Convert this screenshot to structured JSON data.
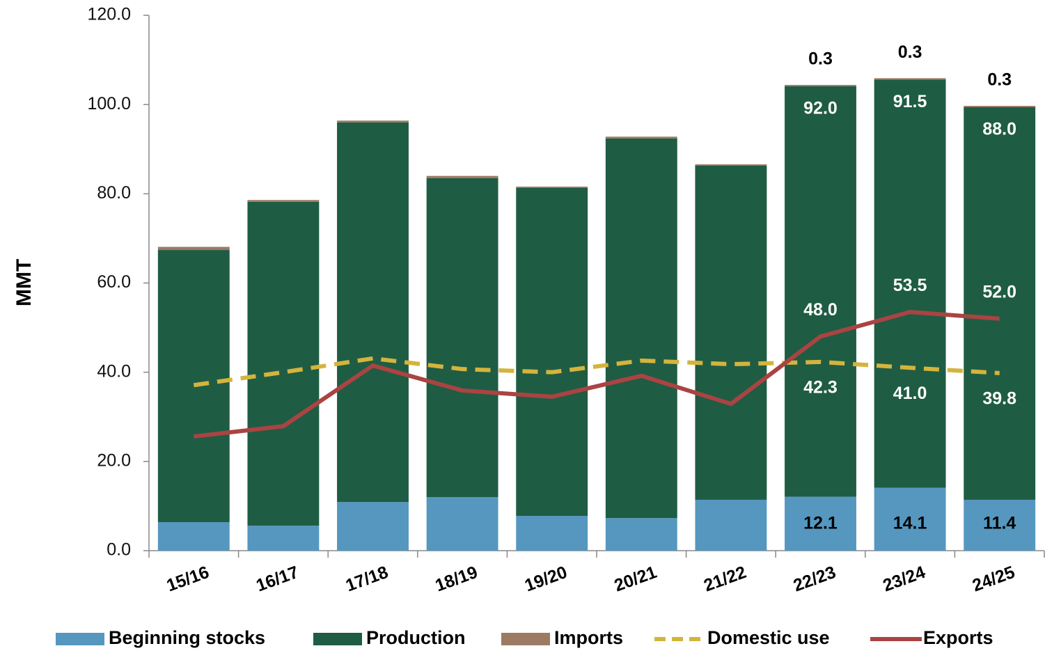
{
  "chart_data": {
    "type": "stacked_bar_line",
    "ylabel": "MMT",
    "categories": [
      "15/16",
      "16/17",
      "17/18",
      "18/19",
      "19/20",
      "20/21",
      "21/22",
      "22/23",
      "23/24",
      "24/25"
    ],
    "series": [
      {
        "name": "Beginning stocks",
        "kind": "bar",
        "color": "#5597bf",
        "values": [
          6.4,
          5.6,
          10.9,
          12.0,
          7.8,
          7.3,
          11.4,
          12.1,
          14.1,
          11.4
        ],
        "value_labels": [
          null,
          null,
          null,
          null,
          null,
          null,
          null,
          "12.1",
          "14.1",
          "11.4"
        ]
      },
      {
        "name": "Production",
        "kind": "bar",
        "color": "#1f5c44",
        "values": [
          61.0,
          72.6,
          85.1,
          71.5,
          73.5,
          85.1,
          74.9,
          92.0,
          91.5,
          88.0
        ],
        "value_labels": [
          null,
          null,
          null,
          null,
          null,
          null,
          null,
          "92.0",
          "91.5",
          "88.0"
        ]
      },
      {
        "name": "Imports",
        "kind": "bar",
        "color": "#9c7a64",
        "values": [
          0.7,
          0.4,
          0.4,
          0.5,
          0.3,
          0.4,
          0.3,
          0.3,
          0.3,
          0.3
        ],
        "value_labels": [
          null,
          null,
          null,
          null,
          null,
          null,
          null,
          "0.3",
          "0.3",
          "0.3"
        ]
      },
      {
        "name": "Domestic use",
        "kind": "line",
        "dashed": true,
        "color": "#d4b43c",
        "values": [
          37.1,
          40.0,
          43.1,
          40.7,
          40.0,
          42.6,
          41.8,
          42.3,
          41.0,
          39.8
        ],
        "value_labels": [
          null,
          null,
          null,
          null,
          null,
          null,
          null,
          "42.3",
          "41.0",
          "39.8"
        ]
      },
      {
        "name": "Exports",
        "kind": "line",
        "dashed": false,
        "color": "#a94442",
        "values": [
          25.6,
          27.9,
          41.5,
          35.9,
          34.5,
          39.2,
          32.9,
          48.0,
          53.5,
          52.0
        ],
        "value_labels": [
          null,
          null,
          null,
          null,
          null,
          null,
          null,
          "48.0",
          "53.5",
          "52.0"
        ]
      }
    ],
    "ylim": [
      0,
      120
    ],
    "yticks": [
      {
        "value": 0,
        "label": "0.0"
      },
      {
        "value": 20,
        "label": "20.0"
      },
      {
        "value": 40,
        "label": "40.0"
      },
      {
        "value": 60,
        "label": "60.0"
      },
      {
        "value": 80,
        "label": "80.0"
      },
      {
        "value": 100,
        "label": "100.0"
      },
      {
        "value": 120,
        "label": "120.0"
      }
    ],
    "legend": "bottom"
  }
}
